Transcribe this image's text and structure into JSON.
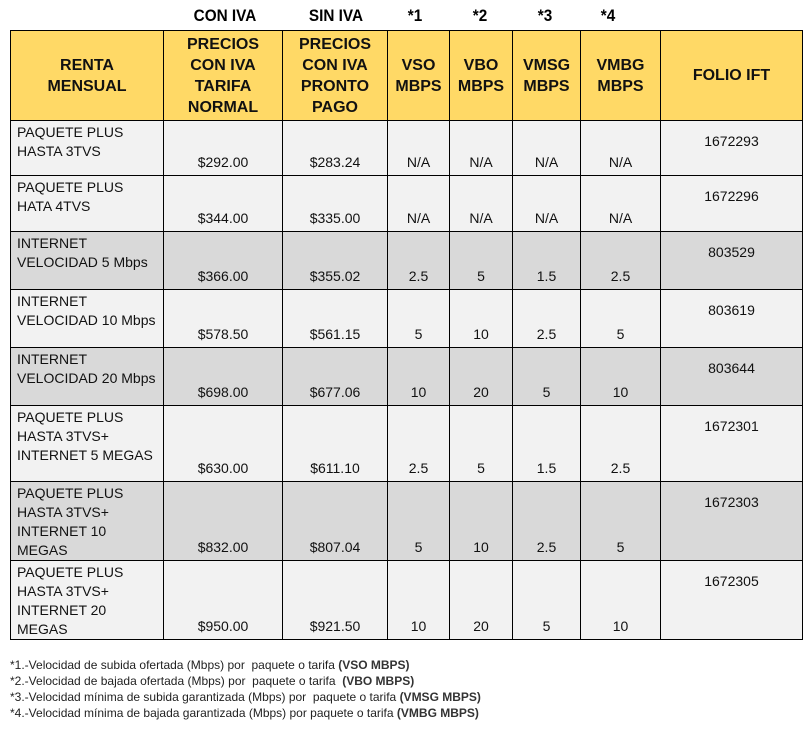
{
  "top_labels": [
    "CON IVA",
    "SIN IVA",
    "*1",
    "*2",
    "*3",
    "*4"
  ],
  "headers": [
    "RENTA MENSUAL",
    "PRECIOS CON IVA TARIFA NORMAL",
    "PRECIOS CON IVA PRONTO PAGO",
    "VSO MBPS",
    "VBO MBPS",
    "VMSG MBPS",
    "VMBG MBPS",
    "FOLIO IFT"
  ],
  "rows": [
    {
      "name": "PAQUETE PLUS HASTA 3TVS",
      "normal": "$292.00",
      "pronto": "$283.24",
      "vso": "N/A",
      "vbo": "N/A",
      "vmsg": "N/A",
      "vmbg": "N/A",
      "folio": "1672293"
    },
    {
      "name": "PAQUETE PLUS HATA 4TVS",
      "normal": "$344.00",
      "pronto": "$335.00",
      "vso": "N/A",
      "vbo": "N/A",
      "vmsg": "N/A",
      "vmbg": "N/A",
      "folio": "1672296"
    },
    {
      "name": "INTERNET VELOCIDAD 5 Mbps",
      "normal": "$366.00",
      "pronto": "$355.02",
      "vso": "2.5",
      "vbo": "5",
      "vmsg": "1.5",
      "vmbg": "2.5",
      "folio": "803529"
    },
    {
      "name": "INTERNET VELOCIDAD 10 Mbps",
      "normal": "$578.50",
      "pronto": "$561.15",
      "vso": "5",
      "vbo": "10",
      "vmsg": "2.5",
      "vmbg": "5",
      "folio": "803619"
    },
    {
      "name": "INTERNET VELOCIDAD 20 Mbps",
      "normal": "$698.00",
      "pronto": "$677.06",
      "vso": "10",
      "vbo": "20",
      "vmsg": "5",
      "vmbg": "10",
      "folio": "803644"
    },
    {
      "name": "PAQUETE PLUS HASTA 3TVS+ INTERNET 5 MEGAS",
      "normal": "$630.00",
      "pronto": "$611.10",
      "vso": "2.5",
      "vbo": "5",
      "vmsg": "1.5",
      "vmbg": "2.5",
      "folio": "1672301"
    },
    {
      "name": "PAQUETE PLUS HASTA 3TVS+ INTERNET 10 MEGAS",
      "normal": "$832.00",
      "pronto": "$807.04",
      "vso": "5",
      "vbo": "10",
      "vmsg": "2.5",
      "vmbg": "5",
      "folio": "1672303"
    },
    {
      "name": "PAQUETE PLUS HASTA 3TVS+ INTERNET 20 MEGAS",
      "normal": "$950.00",
      "pronto": "$921.50",
      "vso": "10",
      "vbo": "20",
      "vmsg": "5",
      "vmbg": "10",
      "folio": "1672305"
    }
  ],
  "notes": [
    {
      "text": "*1.-Velocidad de subida ofertada (Mbps) por  paquete o tarifa ",
      "bold": "(VSO MBPS)"
    },
    {
      "text": "*2.-Velocidad de bajada ofertada (Mbps) por  paquete o tarifa  ",
      "bold": "(VBO MBPS)"
    },
    {
      "text": "*3.-Velocidad mínima de subida garantizada (Mbps) por  paquete o tarifa ",
      "bold": "(VMSG MBPS)"
    },
    {
      "text": "*4.-Velocidad mínima de bajada garantizada (Mbps) por paquete o tarifa ",
      "bold": "(VMBG MBPS)"
    }
  ],
  "colors": {
    "header": "#ffd966",
    "gray_row": "#d9d9d9",
    "light_row": "#f2f2f2"
  }
}
